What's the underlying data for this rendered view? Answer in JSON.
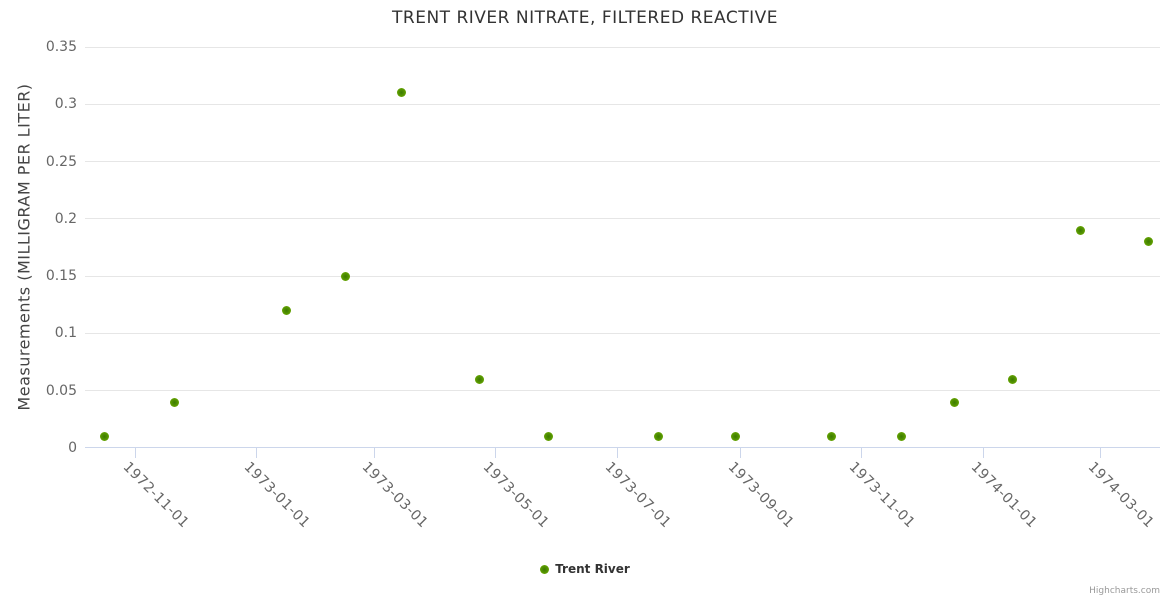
{
  "chart_data": {
    "type": "scatter",
    "title": "TRENT RIVER NITRATE, FILTERED REACTIVE",
    "xlabel": "",
    "ylabel": "Measurements (MILLIGRAM PER LITER)",
    "ylim": [
      0,
      0.35
    ],
    "y_tick_labels": [
      "0",
      "0.05",
      "0.1",
      "0.15",
      "0.2",
      "0.25",
      "0.3",
      "0.35"
    ],
    "x_tick_labels": [
      "1972-11-01",
      "1973-01-01",
      "1973-03-01",
      "1973-05-01",
      "1973-07-01",
      "1973-09-01",
      "1973-11-01",
      "1974-01-01",
      "1974-03-01"
    ],
    "x_range": [
      "1972-10-07",
      "1974-03-31"
    ],
    "grid": "horizontal",
    "legend_position": "bottom-center",
    "credits": "Highcharts.com",
    "series": [
      {
        "name": "Trent River",
        "color": "#5b9c03",
        "points": [
          {
            "x": "1972-10-17",
            "y": 0.01
          },
          {
            "x": "1972-11-21",
            "y": 0.04
          },
          {
            "x": "1973-01-16",
            "y": 0.12
          },
          {
            "x": "1973-02-15",
            "y": 0.15
          },
          {
            "x": "1973-03-15",
            "y": 0.31
          },
          {
            "x": "1973-04-23",
            "y": 0.06
          },
          {
            "x": "1973-05-28",
            "y": 0.01
          },
          {
            "x": "1973-07-22",
            "y": 0.01
          },
          {
            "x": "1973-08-30",
            "y": 0.01
          },
          {
            "x": "1973-10-17",
            "y": 0.01
          },
          {
            "x": "1973-11-21",
            "y": 0.01
          },
          {
            "x": "1973-12-18",
            "y": 0.04
          },
          {
            "x": "1974-01-16",
            "y": 0.06
          },
          {
            "x": "1974-02-19",
            "y": 0.19
          },
          {
            "x": "1974-03-25",
            "y": 0.18
          }
        ]
      }
    ]
  }
}
